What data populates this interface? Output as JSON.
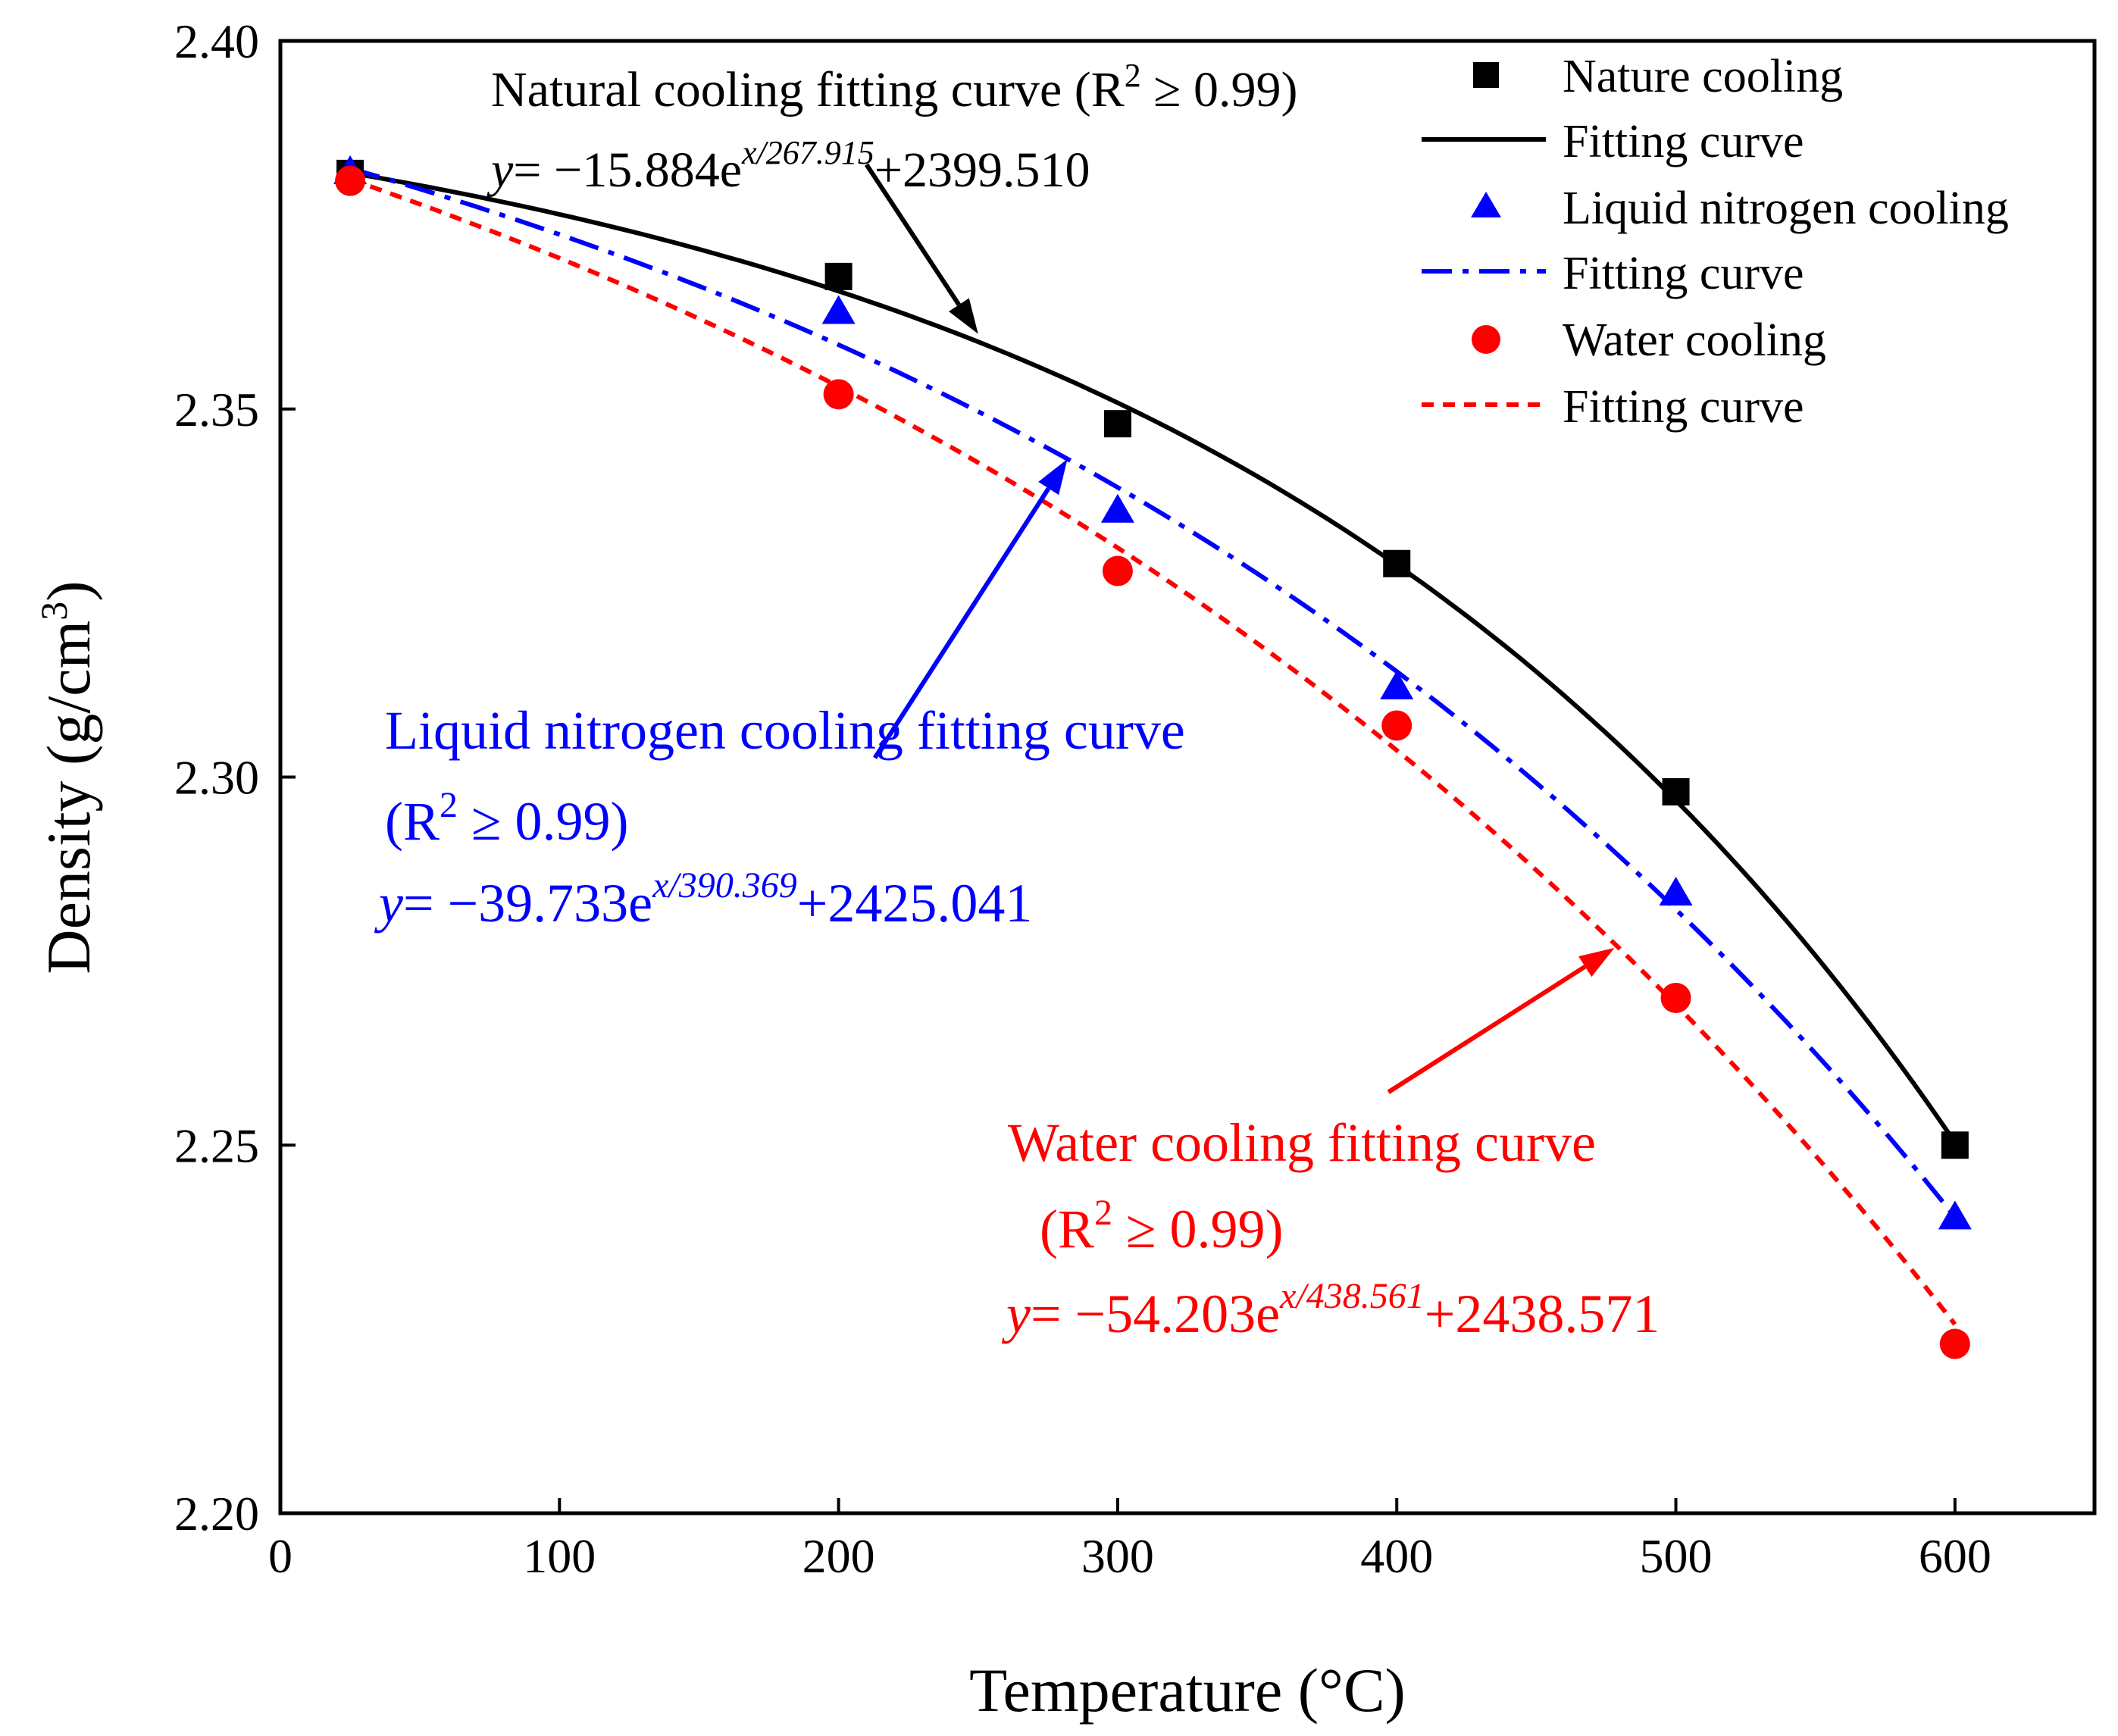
{
  "chart_data": {
    "type": "scatter",
    "xlabel": "Temperature (°C)",
    "ylabel_main": "Density (g/cm",
    "ylabel_sup": "3",
    "ylabel_close": ")",
    "xlim": [
      0,
      650
    ],
    "ylim": [
      2.2,
      2.4
    ],
    "x_ticks": [
      0,
      100,
      200,
      300,
      400,
      500,
      600
    ],
    "x_tick_labels": [
      "0",
      "100",
      "200",
      "300",
      "400",
      "500",
      "600"
    ],
    "y_ticks": [
      2.2,
      2.25,
      2.3,
      2.35,
      2.4
    ],
    "y_tick_labels": [
      "2.20",
      "2.25",
      "2.30",
      "2.35",
      "2.40"
    ],
    "grid": false,
    "legend_position": "top-right",
    "series": [
      {
        "name": "Nature cooling",
        "fit_name": "Fitting curve",
        "color": "#000000",
        "marker": "square",
        "line_style": "solid",
        "x": [
          25,
          200,
          300,
          400,
          500,
          600
        ],
        "y": [
          2.382,
          2.368,
          2.348,
          2.329,
          2.298,
          2.25
        ],
        "fit": {
          "a": -15.884,
          "b": 267.915,
          "c": 2399.51
        }
      },
      {
        "name": "Liquid nitrogen cooling",
        "fit_name": "Fitting curve",
        "color": "#0000ff",
        "marker": "triangle",
        "line_style": "dashdot",
        "x": [
          25,
          200,
          300,
          400,
          500,
          600
        ],
        "y": [
          2.382,
          2.363,
          2.336,
          2.312,
          2.284,
          2.24
        ],
        "fit": {
          "a": -39.733,
          "b": 390.369,
          "c": 2425.041
        }
      },
      {
        "name": "Water cooling",
        "fit_name": "Fitting curve",
        "color": "#ff0000",
        "marker": "circle",
        "line_style": "dashed",
        "x": [
          25,
          200,
          300,
          400,
          500,
          600
        ],
        "y": [
          2.381,
          2.352,
          2.328,
          2.307,
          2.27,
          2.223
        ],
        "fit": {
          "a": -54.203,
          "b": 438.561,
          "c": 2438.571
        }
      }
    ],
    "annotations": {
      "natural": {
        "title": "Natural cooling fitting curve  (R",
        "r2_sup": "2",
        "r2_rest": " ≥ 0.99)",
        "eq_y": "y",
        "eq_main": "= −15.884e",
        "eq_sup": "x/267.915",
        "eq_tail": "+2399.510"
      },
      "nitrogen": {
        "title": "Liquid nitrogen cooling fitting curve",
        "r2_open": "(R",
        "r2_sup": "2",
        "r2_rest": " ≥ 0.99)",
        "eq_y": "y",
        "eq_main": "= −39.733e",
        "eq_sup": "x/390.369",
        "eq_tail": "+2425.041"
      },
      "water": {
        "title": "Water cooling fitting curve",
        "r2_open": "(R",
        "r2_sup": "2",
        "r2_rest": " ≥ 0.99)",
        "eq_y": "y",
        "eq_main": "= −54.203e",
        "eq_sup": "x/438.561",
        "eq_tail": "+2438.571"
      }
    }
  }
}
